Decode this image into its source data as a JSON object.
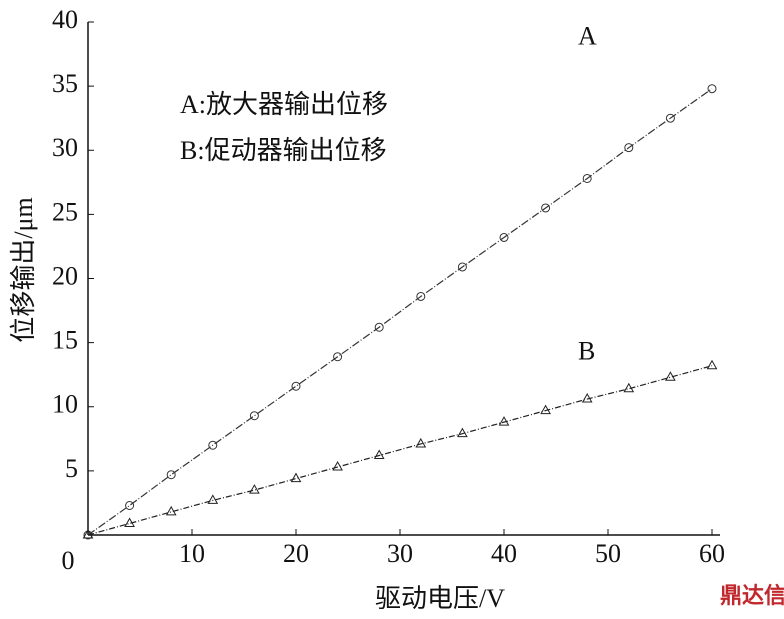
{
  "chart_data": {
    "type": "line",
    "x_label": "驱动电压/V",
    "y_label": "位移输出/μm",
    "x": [
      0,
      4,
      8,
      12,
      16,
      20,
      24,
      28,
      32,
      36,
      40,
      44,
      48,
      52,
      56,
      60
    ],
    "series": [
      {
        "name": "A",
        "color": "#333333",
        "marker": "circle",
        "values": [
          0,
          2.3,
          4.7,
          7.0,
          9.3,
          11.6,
          13.9,
          16.2,
          18.6,
          20.9,
          23.2,
          25.5,
          27.8,
          30.2,
          32.5,
          34.8
        ]
      },
      {
        "name": "B",
        "color": "#222222",
        "marker": "triangle",
        "values": [
          0,
          0.9,
          1.8,
          2.7,
          3.5,
          4.4,
          5.3,
          6.2,
          7.1,
          7.9,
          8.8,
          9.7,
          10.6,
          11.4,
          12.3,
          13.2
        ]
      }
    ],
    "annotations": [
      "A:放大器输出位移",
      "B:促动器输出位移"
    ],
    "watermark": "鼎达信",
    "xlim": [
      0,
      60
    ],
    "ylim": [
      0,
      40
    ],
    "xticks": [
      0,
      10,
      20,
      30,
      40,
      50,
      60
    ],
    "yticks": [
      5,
      10,
      15,
      20,
      25,
      30,
      35,
      40
    ]
  }
}
